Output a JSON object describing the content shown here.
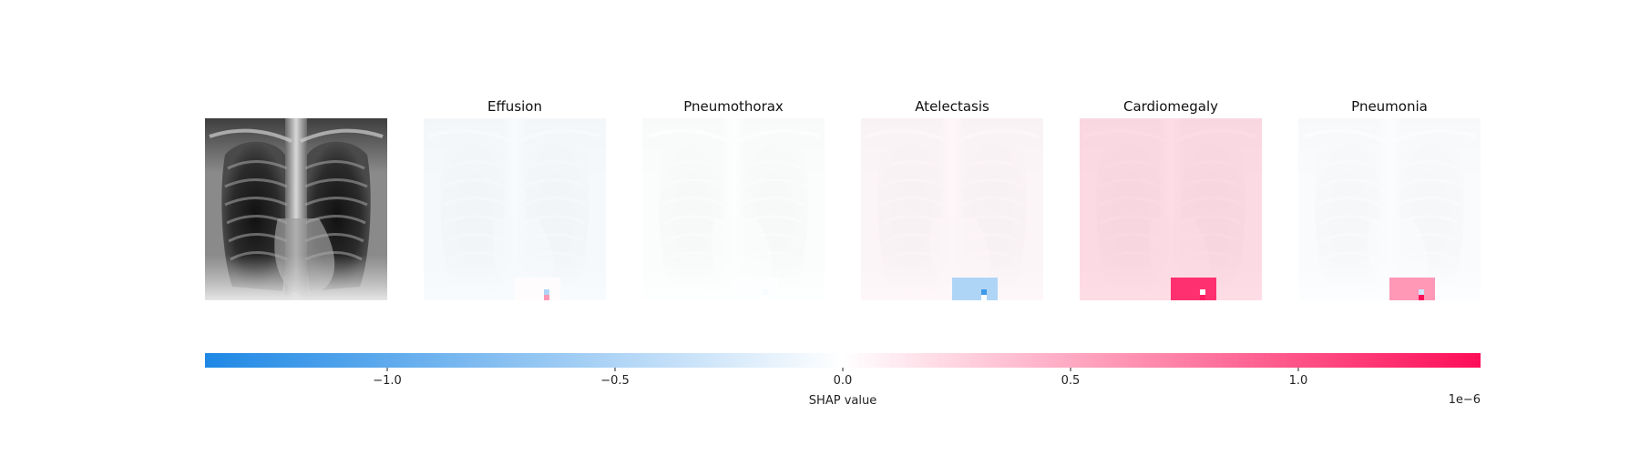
{
  "chart_data": {
    "type": "heatmap",
    "title": "",
    "panels": [
      {
        "title": "",
        "kind": "input-image"
      },
      {
        "title": "Effusion",
        "overall_shap": -5e-08,
        "patch_shap": 2e-08,
        "hot_pixels": [
          -5e-07,
          6e-07
        ]
      },
      {
        "title": "Pneumothorax",
        "overall_shap": -5e-09,
        "patch_shap": -1e-08,
        "hot_pixels": [
          -5e-08,
          0.0
        ]
      },
      {
        "title": "Atelectasis",
        "overall_shap": 5e-08,
        "patch_shap": -5e-07,
        "hot_pixels": [
          -1.2e-06,
          0.0
        ]
      },
      {
        "title": "Cardiomegaly",
        "overall_shap": 2.5e-07,
        "patch_shap": 1.2e-06,
        "hot_pixels": [
          0.0,
          1.3e-06
        ]
      },
      {
        "title": "Pneumonia",
        "overall_shap": -1.5e-08,
        "patch_shap": 6e-07,
        "hot_pixels": [
          -3e-07,
          1.4e-06
        ]
      }
    ],
    "colorbar": {
      "label": "SHAP value",
      "range": [
        -1.4e-06,
        1.4e-06
      ],
      "ticks": [
        -1e-06,
        -5e-07,
        0.0,
        5e-07,
        1e-06
      ],
      "tick_labels": [
        "−1.0",
        "−0.5",
        "0.0",
        "0.5",
        "1.0"
      ],
      "scale_label": "1e−6",
      "colors": {
        "negative": "#1e88e5",
        "zero": "#ffffff",
        "positive": "#ff0d57"
      }
    }
  }
}
